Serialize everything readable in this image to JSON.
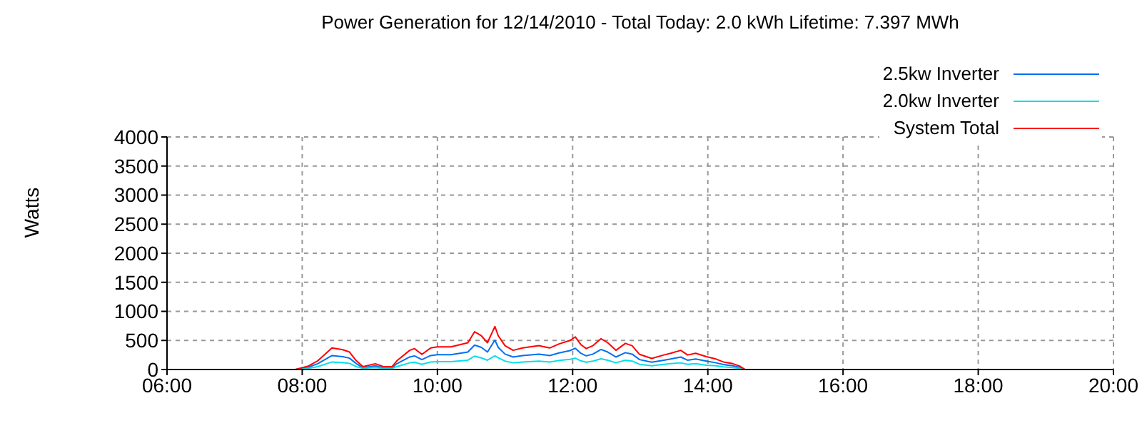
{
  "chart_data": {
    "type": "line",
    "title": "Power Generation for 12/14/2010 - Total Today: 2.0 kWh   Lifetime: 7.397 MWh",
    "ylabel": "Watts",
    "x": [
      7.9,
      8.09,
      8.23,
      8.44,
      8.6,
      8.7,
      8.8,
      8.9,
      9.08,
      9.2,
      9.33,
      9.4,
      9.59,
      9.66,
      9.77,
      9.9,
      10.0,
      10.2,
      10.45,
      10.55,
      10.65,
      10.74,
      10.85,
      10.9,
      11.0,
      11.12,
      11.26,
      11.5,
      11.66,
      11.8,
      11.96,
      12.04,
      12.12,
      12.2,
      12.3,
      12.42,
      12.52,
      12.64,
      12.78,
      12.88,
      12.99,
      13.17,
      13.35,
      13.45,
      13.6,
      13.7,
      13.82,
      13.98,
      14.12,
      14.23,
      14.37,
      14.47,
      14.55,
      15.0
    ],
    "series": [
      {
        "name": "2.5kw Inverter",
        "color": "#0070f0",
        "values": [
          0,
          40,
          100,
          240,
          220,
          195,
          100,
          30,
          65,
          30,
          30,
          100,
          215,
          235,
          170,
          240,
          255,
          255,
          300,
          420,
          380,
          300,
          505,
          380,
          265,
          215,
          240,
          265,
          240,
          285,
          325,
          365,
          280,
          235,
          265,
          345,
          300,
          215,
          290,
          265,
          170,
          125,
          160,
          180,
          215,
          160,
          180,
          145,
          115,
          85,
          65,
          40,
          0,
          0
        ]
      },
      {
        "name": "2.0kw Inverter",
        "color": "#00e0e8",
        "values": [
          0,
          20,
          50,
          130,
          120,
          105,
          50,
          20,
          35,
          20,
          20,
          50,
          115,
          125,
          90,
          130,
          135,
          135,
          160,
          230,
          200,
          160,
          235,
          200,
          145,
          115,
          130,
          145,
          130,
          155,
          175,
          195,
          150,
          125,
          145,
          185,
          160,
          115,
          160,
          145,
          90,
          65,
          90,
          100,
          115,
          90,
          100,
          75,
          65,
          45,
          35,
          20,
          0,
          0
        ]
      },
      {
        "name": "System Total",
        "color": "#ff0000",
        "values": [
          0,
          60,
          150,
          370,
          340,
          300,
          150,
          50,
          100,
          50,
          50,
          150,
          330,
          360,
          260,
          370,
          390,
          390,
          460,
          650,
          580,
          460,
          740,
          580,
          410,
          330,
          370,
          410,
          370,
          440,
          500,
          560,
          430,
          360,
          410,
          530,
          460,
          330,
          450,
          410,
          260,
          190,
          250,
          280,
          330,
          250,
          280,
          220,
          180,
          130,
          100,
          60,
          0,
          0
        ]
      }
    ],
    "xlim": [
      6,
      20
    ],
    "xticks": [
      {
        "value": 6,
        "label": "06:00"
      },
      {
        "value": 8,
        "label": "08:00"
      },
      {
        "value": 10,
        "label": "10:00"
      },
      {
        "value": 12,
        "label": "12:00"
      },
      {
        "value": 14,
        "label": "14:00"
      },
      {
        "value": 16,
        "label": "16:00"
      },
      {
        "value": 18,
        "label": "18:00"
      },
      {
        "value": 20,
        "label": "20:00"
      }
    ],
    "ylim": [
      0,
      4000
    ],
    "yticks": [
      0,
      500,
      1000,
      1500,
      2000,
      2500,
      3000,
      3500,
      4000
    ],
    "grid": true,
    "legend": "top right",
    "marker": "none",
    "line_style": "solid"
  }
}
